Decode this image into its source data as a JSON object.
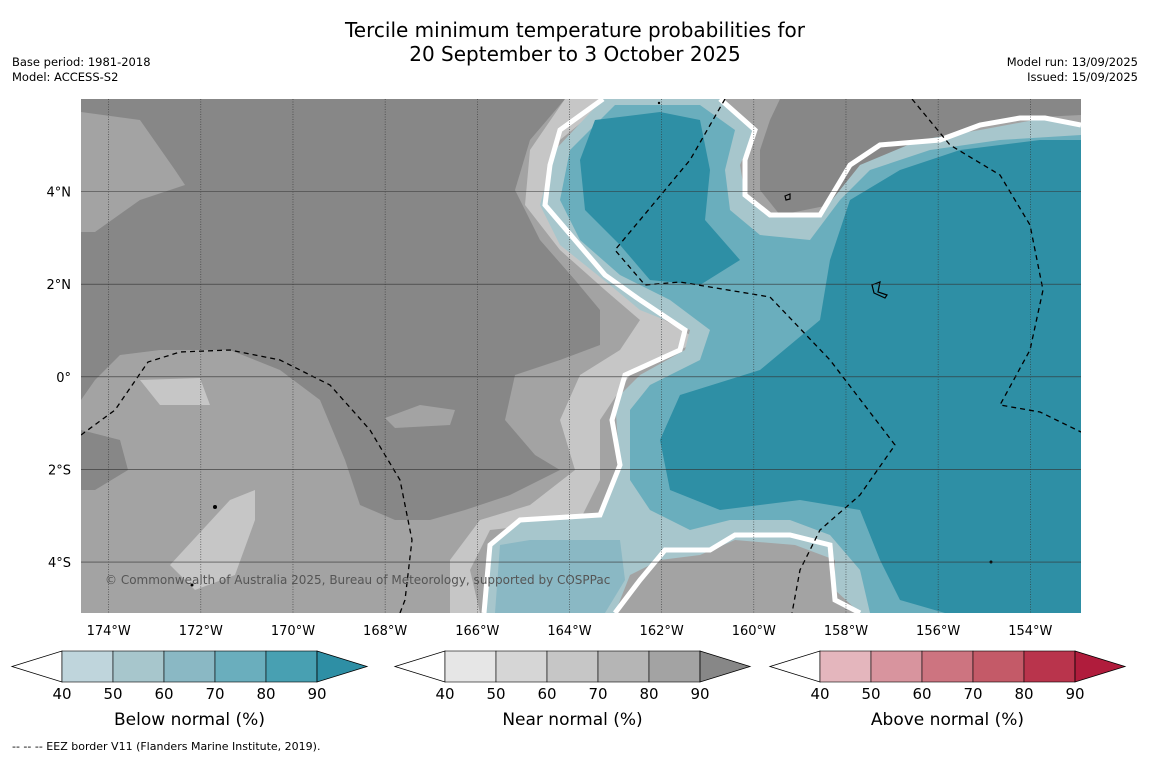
{
  "title_line1": "Tercile minimum temperature probabilities for",
  "title_line2": "20 September to 3 October 2025",
  "meta_left": [
    "Base period: 1981-2018",
    "Model: ACCESS-S2"
  ],
  "meta_right": [
    "Model run: 13/09/2025",
    "Issued: 15/09/2025"
  ],
  "copyright": "© Commonwealth of Australia 2025, Bureau of Meteorology, supported by COSPPac",
  "footnote": "--  --  -- EEZ border V11 (Flanders Marine Institute, 2019).",
  "map": {
    "lon_range": [
      -174.6,
      -152.9
    ],
    "lat_range": [
      -5.1,
      6.0
    ],
    "lon_ticks": [
      -174,
      -172,
      -170,
      -168,
      -166,
      -164,
      -162,
      -160,
      -158,
      -156,
      -154
    ],
    "lon_tick_labels": [
      "174°W",
      "172°W",
      "170°W",
      "168°W",
      "166°W",
      "164°W",
      "162°W",
      "160°W",
      "158°W",
      "156°W",
      "154°W"
    ],
    "lat_ticks": [
      4,
      2,
      0,
      -2,
      -4
    ],
    "lat_tick_labels": [
      "4°N",
      "2°N",
      "0°",
      "2°S",
      "4°S"
    ]
  },
  "colorbars": [
    {
      "title": "Below normal (%)",
      "ticks": [
        "40",
        "50",
        "60",
        "70",
        "80",
        "90"
      ],
      "colors": [
        "#bfd5dc",
        "#a7c6cc",
        "#8ab8c4",
        "#6aaebd",
        "#48a0b2",
        "#2e8fa5"
      ]
    },
    {
      "title": "Near normal (%)",
      "ticks": [
        "40",
        "50",
        "60",
        "70",
        "80",
        "90"
      ],
      "colors": [
        "#e6e6e6",
        "#d6d6d6",
        "#c6c6c6",
        "#b5b5b5",
        "#a3a3a3",
        "#878787"
      ]
    },
    {
      "title": "Above normal (%)",
      "ticks": [
        "40",
        "50",
        "60",
        "70",
        "80",
        "90"
      ],
      "colors": [
        "#e4b6bd",
        "#d8949e",
        "#cd7480",
        "#c45a68",
        "#b9344c",
        "#b01c3c"
      ]
    }
  ],
  "colors": {
    "near_dark": "#878787",
    "near_mid": "#a3a3a3",
    "near_light": "#c6c6c6",
    "below_dark": "#2e8fa5",
    "below_mid": "#6aaebd",
    "below_light": "#a7c6cc",
    "grid": "#333333"
  }
}
